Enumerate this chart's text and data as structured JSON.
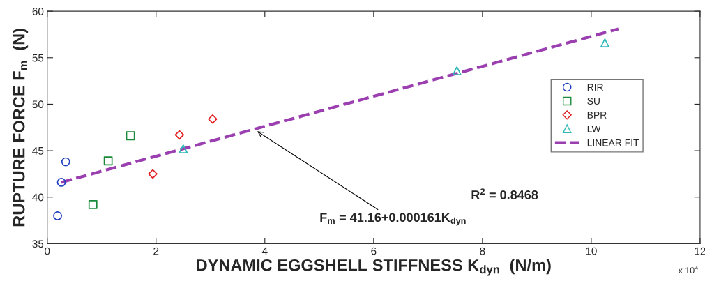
{
  "chart_data": {
    "type": "scatter",
    "xlabel": "DYNAMIC EGGSHELL STIFFNESS K$_{dyn}$  (N/m)",
    "ylabel": "RUPTURE FORCE F$_{m}$  (N)",
    "xlim": [
      0,
      12
    ],
    "ylim": [
      35,
      60
    ],
    "xticks": [
      0,
      2,
      4,
      6,
      8,
      10,
      12
    ],
    "yticks": [
      35,
      40,
      45,
      50,
      55,
      60
    ],
    "grid": false,
    "legend": "right",
    "series": [
      {
        "name": "RIR",
        "marker": "circle",
        "color": "#2040c0",
        "x": [
          0.19,
          0.26,
          0.34
        ],
        "values": [
          38.0,
          41.6,
          43.8
        ]
      },
      {
        "name": "SU",
        "marker": "square",
        "color": "#1a8a3a",
        "x": [
          0.84,
          1.12,
          1.53
        ],
        "values": [
          39.2,
          43.9,
          46.6
        ]
      },
      {
        "name": "BPR",
        "marker": "diamond",
        "color": "#e02020",
        "x": [
          1.94,
          2.43,
          3.04
        ],
        "values": [
          42.5,
          46.7,
          48.4
        ]
      },
      {
        "name": "LW",
        "marker": "triangle",
        "color": "#30b8b8",
        "x": [
          2.5,
          7.53,
          10.25
        ],
        "values": [
          45.2,
          53.6,
          56.6
        ]
      },
      {
        "name": "LINEAR FIT",
        "type": "line",
        "line_style": "dashed",
        "color": "#9b3fb0",
        "x": [
          0.26,
          10.5
        ],
        "values": [
          41.6,
          58.1
        ]
      }
    ],
    "annotations": [
      {
        "text": "F$_{m}$ = 41.16+0.000161K$_{dyn}$",
        "x": 3.83,
        "y": 47.2
      },
      "R$^{2}$ = 0.8468",
      "x 10$^{4}$"
    ]
  }
}
